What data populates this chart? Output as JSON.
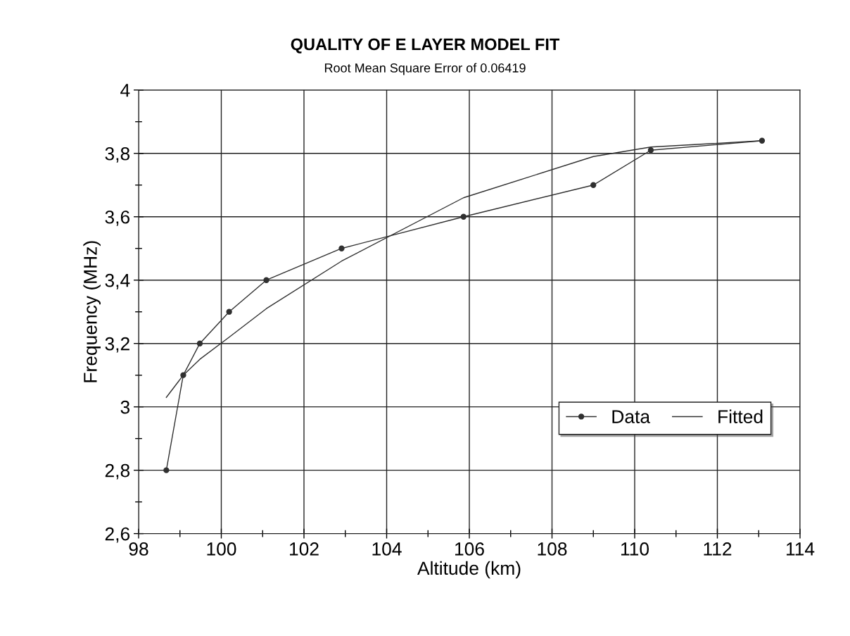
{
  "chart_data": {
    "type": "line",
    "title": "QUALITY OF E LAYER MODEL FIT",
    "subtitle": "Root Mean Square Error of 0.06419",
    "xlabel": "Altitude (km)",
    "ylabel": "Frequency (MHz)",
    "xlim": [
      98,
      114
    ],
    "xticks": [
      98,
      100,
      102,
      104,
      106,
      108,
      110,
      112,
      114
    ],
    "ylim": [
      2.6,
      4
    ],
    "yticks": [
      {
        "value": 2.6,
        "label": "2,6"
      },
      {
        "value": 2.8,
        "label": "2,8"
      },
      {
        "value": 3,
        "label": "3"
      },
      {
        "value": 3.2,
        "label": "3,2"
      },
      {
        "value": 3.4,
        "label": "3,4"
      },
      {
        "value": 3.6,
        "label": "3,6"
      },
      {
        "value": 3.8,
        "label": "3,8"
      },
      {
        "value": 4,
        "label": "4"
      }
    ],
    "grid": true,
    "legend": "right",
    "series": [
      {
        "name": "Data",
        "color": "#303030",
        "marker": "circle",
        "x": [
          98.67,
          99.08,
          99.48,
          100.19,
          101.09,
          102.91,
          105.86,
          109.0,
          110.39,
          113.08
        ],
        "values": [
          2.8,
          3.1,
          3.2,
          3.3,
          3.4,
          3.5,
          3.6,
          3.7,
          3.81,
          3.84
        ]
      },
      {
        "name": "Fitted",
        "color": "#303030",
        "marker": "none",
        "x": [
          98.67,
          99.08,
          99.48,
          100.19,
          101.09,
          102.91,
          105.86,
          109.0,
          110.39,
          113.08
        ],
        "values": [
          3.03,
          3.1,
          3.15,
          3.22,
          3.31,
          3.46,
          3.66,
          3.79,
          3.82,
          3.84
        ]
      }
    ]
  }
}
